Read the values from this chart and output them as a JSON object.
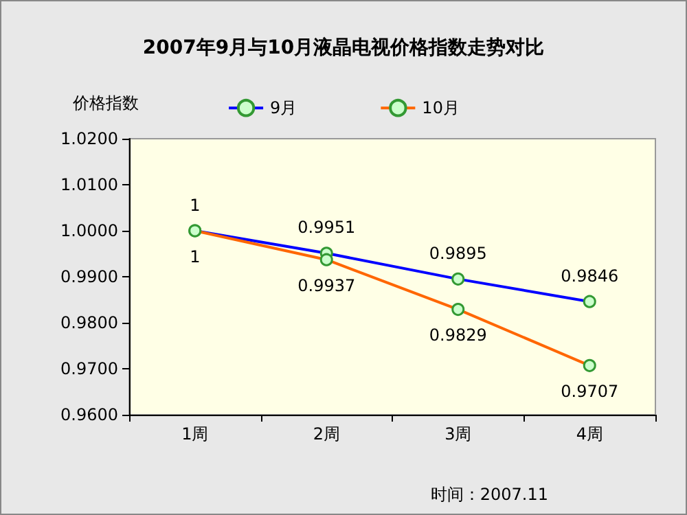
{
  "chart_data": {
    "type": "line",
    "title": "2007年9月与10月液晶电视价格指数走势对比",
    "ylabel": "价格指数",
    "categories": [
      "1周",
      "2周",
      "3周",
      "4周"
    ],
    "series": [
      {
        "name": "9月",
        "color": "#0000ff",
        "values": [
          1,
          0.9951,
          0.9895,
          0.9846
        ]
      },
      {
        "name": "10月",
        "color": "#ff6600",
        "values": [
          1,
          0.9937,
          0.9829,
          0.9707
        ]
      }
    ],
    "ylim": [
      0.96,
      1.02
    ],
    "yticks": [
      {
        "value": 0.96,
        "label": "0.9600"
      },
      {
        "value": 0.97,
        "label": "0.9700"
      },
      {
        "value": 0.98,
        "label": "0.9800"
      },
      {
        "value": 0.99,
        "label": "0.9900"
      },
      {
        "value": 1.0,
        "label": "1.0000"
      },
      {
        "value": 1.01,
        "label": "1.0100"
      },
      {
        "value": 1.02,
        "label": "1.0200"
      }
    ],
    "data_labels": true,
    "grid": false,
    "legend": "top",
    "marker": "circle",
    "line_style": "solid",
    "annotations": [
      "时间：2007.11"
    ]
  }
}
